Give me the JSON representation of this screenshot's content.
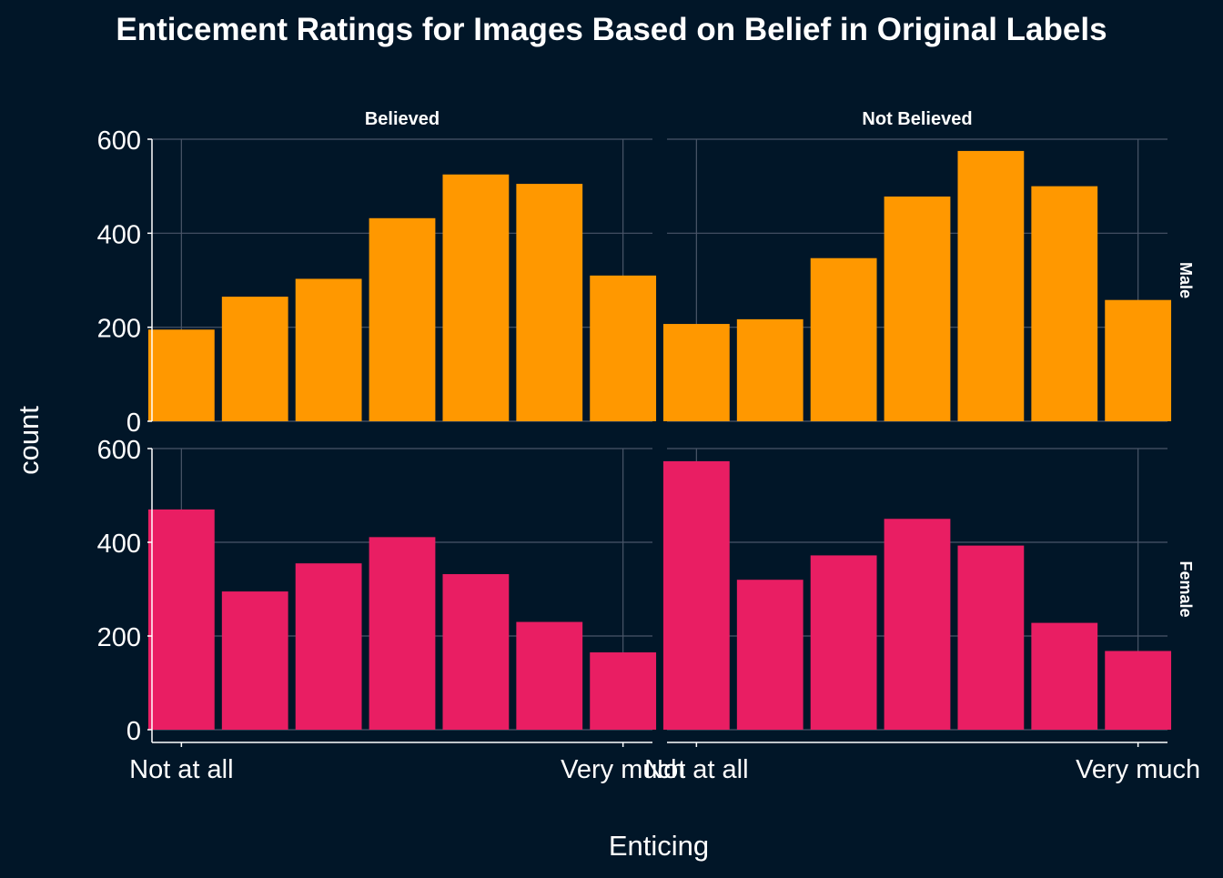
{
  "colors": {
    "background": "#011628",
    "grid": "#4a5568",
    "axis": "#ffffff",
    "text": "#ffffff",
    "male": "#FF9800",
    "female": "#E91E63"
  },
  "chart_data": {
    "type": "bar",
    "title": "Enticement Ratings for Images Based on Belief in Original Labels",
    "xlabel": "Enticing",
    "ylabel": "count",
    "x_categories": [
      1,
      2,
      3,
      4,
      5,
      6,
      7
    ],
    "x_tick_values": [
      1,
      7
    ],
    "x_tick_labels": [
      "Not at all",
      "Very much"
    ],
    "y_ticks": [
      0,
      200,
      400,
      600
    ],
    "ylim": [
      0,
      600
    ],
    "column_facets": [
      "Believed",
      "Not Believed"
    ],
    "row_facets": [
      "Male",
      "Female"
    ],
    "grid": true,
    "legend": "none",
    "panels": [
      {
        "row": "Male",
        "column": "Believed",
        "color": "male",
        "values": [
          195,
          265,
          303,
          432,
          525,
          505,
          310
        ]
      },
      {
        "row": "Male",
        "column": "Not Believed",
        "color": "male",
        "values": [
          207,
          217,
          347,
          478,
          575,
          500,
          258
        ]
      },
      {
        "row": "Female",
        "column": "Believed",
        "color": "female",
        "values": [
          470,
          295,
          355,
          411,
          332,
          230,
          165
        ]
      },
      {
        "row": "Female",
        "column": "Not Believed",
        "color": "female",
        "values": [
          573,
          320,
          372,
          450,
          393,
          228,
          168
        ]
      }
    ]
  }
}
